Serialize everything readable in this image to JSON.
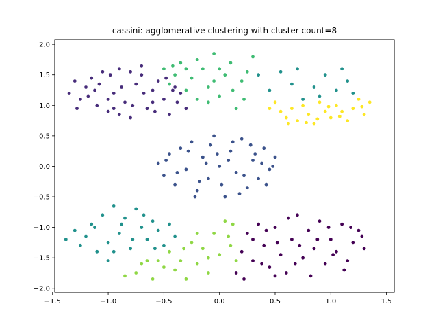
{
  "chart_data": {
    "type": "scatter",
    "title": "cassini: agglomerative clustering with cluster count=8",
    "xlabel": "",
    "ylabel": "",
    "xlim": [
      -1.48,
      1.57
    ],
    "ylim": [
      -2.07,
      2.08
    ],
    "x_ticks": [
      -1.5,
      -1.0,
      -0.5,
      0.0,
      0.5,
      1.0,
      1.5
    ],
    "x_tick_labels": [
      "−1.5",
      "−1.0",
      "−0.5",
      "0.0",
      "0.5",
      "1.0",
      "1.5"
    ],
    "y_ticks": [
      -2.0,
      -1.5,
      -1.0,
      -0.5,
      0.0,
      0.5,
      1.0,
      1.5,
      2.0
    ],
    "y_tick_labels": [
      "−2.0",
      "−1.5",
      "−1.0",
      "−0.5",
      "0.0",
      "0.5",
      "1.0",
      "1.5",
      "2.0"
    ],
    "grid": false,
    "legend": "none",
    "series": [
      {
        "color": "#472c7a",
        "points": [
          [
            -1.35,
            1.2
          ],
          [
            -1.3,
            1.4
          ],
          [
            -1.25,
            1.1
          ],
          [
            -1.2,
            1.3
          ],
          [
            -1.15,
            1.45
          ],
          [
            -1.1,
            1.0
          ],
          [
            -1.05,
            1.55
          ],
          [
            -1.0,
            0.9
          ],
          [
            -0.95,
            1.2
          ],
          [
            -0.9,
            1.6
          ],
          [
            -0.85,
            1.05
          ],
          [
            -0.8,
            0.8
          ],
          [
            -0.75,
            1.35
          ],
          [
            -0.7,
            1.5
          ],
          [
            -0.65,
            0.95
          ],
          [
            -0.6,
            1.25
          ],
          [
            -0.55,
            1.4
          ],
          [
            -0.5,
            1.1
          ],
          [
            -0.45,
            0.85
          ],
          [
            -0.4,
            1.3
          ],
          [
            -0.35,
            1.2
          ],
          [
            -0.3,
            0.95
          ],
          [
            -1.28,
            0.95
          ],
          [
            -1.18,
            1.15
          ],
          [
            -1.08,
            1.35
          ],
          [
            -0.98,
            1.5
          ],
          [
            -0.88,
            1.3
          ],
          [
            -0.78,
            1.0
          ],
          [
            -0.68,
            1.2
          ],
          [
            -0.58,
            0.9
          ],
          [
            -0.48,
            1.45
          ],
          [
            -0.38,
            1.05
          ],
          [
            -1.0,
            1.1
          ],
          [
            -0.9,
            0.85
          ],
          [
            -0.7,
            1.65
          ],
          [
            -0.6,
            1.05
          ],
          [
            -0.8,
            1.55
          ],
          [
            -1.12,
            1.25
          ],
          [
            -0.95,
            0.95
          ],
          [
            -0.42,
            1.25
          ]
        ]
      },
      {
        "color": "#3b528b",
        "points": [
          [
            -0.55,
            0.05
          ],
          [
            -0.5,
            -0.15
          ],
          [
            -0.45,
            0.2
          ],
          [
            -0.4,
            -0.3
          ],
          [
            -0.35,
            0.3
          ],
          [
            -0.3,
            -0.05
          ],
          [
            -0.25,
            0.4
          ],
          [
            -0.2,
            -0.4
          ],
          [
            -0.15,
            0.15
          ],
          [
            -0.1,
            -0.2
          ],
          [
            -0.05,
            0.5
          ],
          [
            0.0,
            0.0
          ],
          [
            0.05,
            -0.5
          ],
          [
            0.1,
            0.25
          ],
          [
            0.15,
            -0.1
          ],
          [
            0.2,
            0.45
          ],
          [
            0.25,
            -0.35
          ],
          [
            0.3,
            0.1
          ],
          [
            0.35,
            -0.2
          ],
          [
            0.4,
            0.3
          ],
          [
            0.45,
            -0.05
          ],
          [
            0.5,
            0.15
          ],
          [
            -0.48,
            0.1
          ],
          [
            -0.38,
            -0.1
          ],
          [
            -0.28,
            0.25
          ],
          [
            -0.18,
            -0.25
          ],
          [
            -0.08,
            0.35
          ],
          [
            0.02,
            -0.3
          ],
          [
            0.12,
            0.4
          ],
          [
            0.22,
            -0.15
          ],
          [
            0.32,
            0.2
          ],
          [
            0.42,
            -0.3
          ],
          [
            0.48,
            0.0
          ],
          [
            -0.12,
            0.05
          ],
          [
            0.08,
            0.1
          ],
          [
            0.18,
            -0.45
          ],
          [
            -0.22,
            -0.5
          ],
          [
            0.28,
            0.35
          ],
          [
            -0.02,
            0.2
          ],
          [
            0.38,
            0.05
          ]
        ]
      },
      {
        "color": "#21918c",
        "points": [
          [
            -1.38,
            -1.2
          ],
          [
            -1.3,
            -1.05
          ],
          [
            -1.25,
            -1.3
          ],
          [
            -1.2,
            -1.15
          ],
          [
            -1.15,
            -0.95
          ],
          [
            -1.1,
            -1.4
          ],
          [
            -1.05,
            -0.8
          ],
          [
            -1.0,
            -1.25
          ],
          [
            -0.95,
            -0.65
          ],
          [
            -0.9,
            -1.1
          ],
          [
            -0.85,
            -0.85
          ],
          [
            -0.8,
            -1.35
          ],
          [
            -0.75,
            -0.7
          ],
          [
            -0.7,
            -1.0
          ],
          [
            -0.65,
            -1.2
          ],
          [
            -0.6,
            -0.9
          ],
          [
            -0.55,
            -1.05
          ],
          [
            -0.5,
            -1.3
          ],
          [
            -0.45,
            -0.95
          ],
          [
            -0.4,
            -1.15
          ],
          [
            -1.0,
            -1.55
          ],
          [
            -0.95,
            -1.4
          ],
          [
            -1.12,
            -1.0
          ],
          [
            -0.88,
            -0.95
          ],
          [
            -0.78,
            -1.2
          ],
          [
            -0.68,
            -0.8
          ],
          [
            -0.58,
            -1.35
          ],
          [
            0.75,
            1.1
          ],
          [
            0.85,
            1.3
          ],
          [
            0.95,
            1.5
          ],
          [
            1.05,
            1.25
          ],
          [
            1.15,
            1.4
          ],
          [
            1.2,
            1.2
          ],
          [
            0.65,
            1.35
          ],
          [
            0.55,
            1.55
          ],
          [
            0.45,
            1.25
          ],
          [
            0.35,
            1.5
          ],
          [
            0.9,
            1.15
          ],
          [
            1.1,
            1.6
          ],
          [
            0.7,
            1.6
          ]
        ]
      },
      {
        "color": "#3fbc73",
        "points": [
          [
            -0.5,
            1.6
          ],
          [
            -0.45,
            1.35
          ],
          [
            -0.4,
            1.5
          ],
          [
            -0.35,
            1.7
          ],
          [
            -0.3,
            1.25
          ],
          [
            -0.25,
            1.45
          ],
          [
            -0.2,
            1.1
          ],
          [
            -0.15,
            1.6
          ],
          [
            -0.1,
            1.3
          ],
          [
            -0.05,
            1.85
          ],
          [
            0.0,
            1.15
          ],
          [
            0.05,
            1.5
          ],
          [
            0.1,
            1.7
          ],
          [
            0.15,
            0.95
          ],
          [
            0.2,
            1.4
          ],
          [
            0.25,
            1.55
          ],
          [
            0.3,
            1.8
          ],
          [
            -0.2,
            1.75
          ],
          [
            0.0,
            1.6
          ],
          [
            -0.1,
            1.05
          ],
          [
            0.12,
            1.25
          ],
          [
            -0.3,
            1.6
          ],
          [
            -0.42,
            1.65
          ],
          [
            0.22,
            1.1
          ],
          [
            -0.05,
            1.4
          ]
        ]
      },
      {
        "color": "#8fd744",
        "points": [
          [
            -0.85,
            -1.8
          ],
          [
            -0.75,
            -1.75
          ],
          [
            -0.65,
            -1.55
          ],
          [
            -0.6,
            -1.85
          ],
          [
            -0.5,
            -1.65
          ],
          [
            -0.45,
            -1.4
          ],
          [
            -0.35,
            -1.55
          ],
          [
            -0.3,
            -1.85
          ],
          [
            -0.25,
            -1.25
          ],
          [
            -0.2,
            -1.6
          ],
          [
            -0.15,
            -1.35
          ],
          [
            -0.1,
            -1.75
          ],
          [
            -0.05,
            -1.1
          ],
          [
            0.0,
            -1.45
          ],
          [
            0.05,
            -0.9
          ],
          [
            0.1,
            -1.3
          ],
          [
            0.15,
            -1.55
          ],
          [
            -0.4,
            -1.7
          ],
          [
            -0.2,
            -1.1
          ],
          [
            -0.1,
            -1.5
          ],
          [
            0.08,
            -1.15
          ],
          [
            -0.32,
            -1.35
          ],
          [
            -0.55,
            -1.55
          ],
          [
            0.12,
            -0.95
          ],
          [
            -0.7,
            -1.6
          ]
        ]
      },
      {
        "color": "#440154",
        "points": [
          [
            0.15,
            -1.75
          ],
          [
            0.2,
            -1.4
          ],
          [
            0.25,
            -1.1
          ],
          [
            0.3,
            -1.55
          ],
          [
            0.35,
            -0.95
          ],
          [
            0.4,
            -1.3
          ],
          [
            0.45,
            -1.65
          ],
          [
            0.5,
            -1.0
          ],
          [
            0.55,
            -1.45
          ],
          [
            0.6,
            -1.75
          ],
          [
            0.65,
            -1.2
          ],
          [
            0.7,
            -0.8
          ],
          [
            0.75,
            -1.5
          ],
          [
            0.8,
            -1.05
          ],
          [
            0.85,
            -1.35
          ],
          [
            0.9,
            -0.9
          ],
          [
            0.95,
            -1.6
          ],
          [
            1.0,
            -1.2
          ],
          [
            1.05,
            -1.4
          ],
          [
            1.1,
            -0.95
          ],
          [
            1.15,
            -1.55
          ],
          [
            1.2,
            -1.25
          ],
          [
            1.25,
            -1.05
          ],
          [
            1.3,
            -1.35
          ],
          [
            0.22,
            -1.85
          ],
          [
            0.38,
            -1.6
          ],
          [
            0.52,
            -1.25
          ],
          [
            0.68,
            -1.6
          ],
          [
            0.82,
            -1.8
          ],
          [
            0.98,
            -1.0
          ],
          [
            1.12,
            -1.7
          ],
          [
            1.28,
            -1.15
          ],
          [
            0.42,
            -1.05
          ],
          [
            0.62,
            -0.85
          ],
          [
            0.88,
            -1.2
          ],
          [
            1.02,
            -1.45
          ],
          [
            0.3,
            -1.2
          ],
          [
            0.72,
            -1.3
          ],
          [
            1.18,
            -1.0
          ],
          [
            0.5,
            -1.8
          ]
        ]
      },
      {
        "color": "#fde725",
        "points": [
          [
            0.45,
            0.95
          ],
          [
            0.5,
            1.05
          ],
          [
            0.55,
            0.9
          ],
          [
            0.6,
            0.8
          ],
          [
            0.65,
            0.95
          ],
          [
            0.7,
            0.75
          ],
          [
            0.75,
            1.0
          ],
          [
            0.8,
            0.85
          ],
          [
            0.85,
            0.7
          ],
          [
            0.9,
            1.05
          ],
          [
            0.95,
            0.9
          ],
          [
            1.0,
            0.8
          ],
          [
            1.05,
            1.0
          ],
          [
            1.1,
            0.9
          ],
          [
            1.15,
            0.75
          ],
          [
            1.2,
            0.95
          ],
          [
            1.25,
            1.1
          ],
          [
            1.3,
            0.85
          ],
          [
            1.35,
            1.05
          ],
          [
            0.62,
            0.7
          ],
          [
            0.78,
            0.72
          ],
          [
            1.08,
            0.82
          ],
          [
            1.28,
            0.98
          ],
          [
            0.98,
            0.98
          ],
          [
            0.88,
            0.78
          ]
        ]
      }
    ]
  }
}
